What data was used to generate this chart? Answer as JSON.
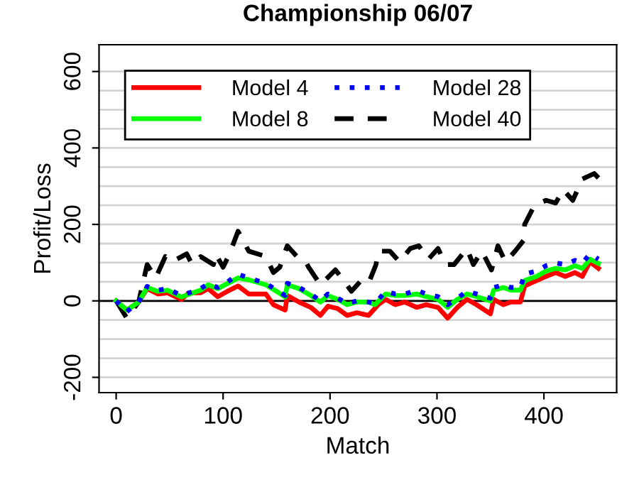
{
  "chart_data": {
    "type": "line",
    "title": "Championship 06/07",
    "xlabel": "Match",
    "ylabel": "Profit/Loss",
    "xlim": [
      -16,
      468
    ],
    "ylim": [
      -240,
      670
    ],
    "xticks": [
      0,
      100,
      200,
      300,
      400
    ],
    "yticks": [
      -200,
      {
        "value": -150,
        "label": null
      },
      {
        "value": -100,
        "label": null
      },
      {
        "value": -50,
        "label": null
      },
      0,
      {
        "value": 50,
        "label": null
      },
      {
        "value": 100,
        "label": null
      },
      {
        "value": 150,
        "label": null
      },
      200,
      {
        "value": 250,
        "label": null
      },
      {
        "value": 300,
        "label": null
      },
      {
        "value": 350,
        "label": null
      },
      400,
      {
        "value": 450,
        "label": null
      },
      {
        "value": 500,
        "label": null
      },
      {
        "value": 550,
        "label": null
      },
      600
    ],
    "grid": "y",
    "legend": "top left",
    "marker": "none",
    "ref_lines": [
      {
        "axis": "y",
        "value": 0,
        "label": null,
        "color": "#000000",
        "line_style": "solid"
      }
    ],
    "series": [
      {
        "name": "Model 4",
        "color": "#ff0000",
        "line_style": "solid",
        "x": [
          0,
          10,
          21,
          29,
          39,
          48,
          61,
          68,
          79,
          86,
          95,
          104,
          114,
          124,
          140,
          147,
          158,
          160,
          171,
          182,
          191,
          198,
          207,
          216,
          225,
          236,
          245,
          252,
          261,
          270,
          281,
          290,
          301,
          310,
          319,
          328,
          337,
          350,
          353,
          362,
          369,
          378,
          382,
          393,
          402,
          411,
          420,
          429,
          436,
          443,
          451
        ],
        "values": [
          0,
          -24,
          -3,
          32,
          18,
          21,
          4,
          21,
          21,
          32,
          11,
          25,
          39,
          18,
          18,
          -10,
          -24,
          14,
          -3,
          -17,
          -38,
          -14,
          -20,
          -38,
          -31,
          -38,
          -10,
          4,
          -10,
          -3,
          -17,
          -10,
          -17,
          -45,
          -17,
          4,
          -10,
          -34,
          4,
          -10,
          -3,
          -3,
          39,
          53,
          64,
          74,
          64,
          74,
          64,
          102,
          85
        ]
      },
      {
        "name": "Model 8",
        "color": "#00ff00",
        "line_style": "solid",
        "x": [
          0,
          10,
          21,
          29,
          39,
          48,
          61,
          79,
          86,
          95,
          104,
          114,
          124,
          140,
          150,
          158,
          160,
          171,
          182,
          191,
          198,
          207,
          216,
          225,
          236,
          242,
          252,
          261,
          270,
          281,
          290,
          301,
          310,
          319,
          328,
          337,
          350,
          353,
          362,
          369,
          378,
          382,
          393,
          402,
          411,
          420,
          429,
          436,
          443,
          451
        ],
        "values": [
          0,
          -24,
          -3,
          35,
          25,
          28,
          10,
          28,
          42,
          32,
          45,
          60,
          55,
          42,
          25,
          10,
          42,
          32,
          14,
          -3,
          14,
          4,
          -10,
          -3,
          -3,
          -10,
          18,
          14,
          14,
          18,
          11,
          4,
          -17,
          4,
          18,
          11,
          0,
          28,
          35,
          28,
          28,
          53,
          64,
          78,
          85,
          81,
          92,
          85,
          109,
          98
        ]
      },
      {
        "name": "Model 28",
        "color": "#0000ff",
        "line_style": "dotted",
        "x": [
          0,
          10,
          21,
          29,
          39,
          48,
          61,
          79,
          86,
          95,
          104,
          114,
          124,
          140,
          150,
          158,
          160,
          171,
          182,
          191,
          198,
          207,
          216,
          225,
          236,
          242,
          252,
          261,
          270,
          281,
          290,
          301,
          310,
          319,
          328,
          337,
          350,
          353,
          362,
          369,
          378,
          382,
          393,
          402,
          411,
          420,
          429,
          436,
          443,
          451
        ],
        "values": [
          0,
          -28,
          -3,
          38,
          28,
          32,
          14,
          32,
          45,
          35,
          49,
          70,
          60,
          46,
          28,
          14,
          46,
          35,
          18,
          0,
          18,
          7,
          -7,
          0,
          -3,
          -7,
          25,
          18,
          18,
          28,
          18,
          11,
          -10,
          7,
          25,
          18,
          7,
          35,
          42,
          35,
          35,
          70,
          78,
          92,
          99,
          95,
          106,
          99,
          123,
          109
        ]
      },
      {
        "name": "Model 40",
        "color": "#000000",
        "line_style": "dashed",
        "x": [
          0,
          10,
          21,
          29,
          37,
          46,
          52,
          66,
          71,
          79,
          91,
          93,
          100,
          106,
          114,
          124,
          140,
          147,
          153,
          160,
          169,
          176,
          180,
          191,
          205,
          211,
          220,
          229,
          236,
          243,
          245,
          256,
          265,
          275,
          283,
          292,
          301,
          308,
          316,
          328,
          334,
          342,
          351,
          357,
          364,
          373,
          381,
          382,
          391,
          402,
          411,
          418,
          427,
          436,
          447,
          453
        ],
        "values": [
          0,
          -45,
          -3,
          95,
          60,
          116,
          102,
          123,
          95,
          116,
          95,
          123,
          88,
          123,
          182,
          130,
          116,
          74,
          88,
          144,
          116,
          109,
          88,
          42,
          81,
          60,
          25,
          53,
          46,
          95,
          130,
          130,
          102,
          137,
          144,
          109,
          137,
          95,
          95,
          137,
          95,
          130,
          81,
          144,
          102,
          130,
          158,
          200,
          249,
          263,
          256,
          291,
          263,
          319,
          333,
          316
        ]
      }
    ]
  }
}
